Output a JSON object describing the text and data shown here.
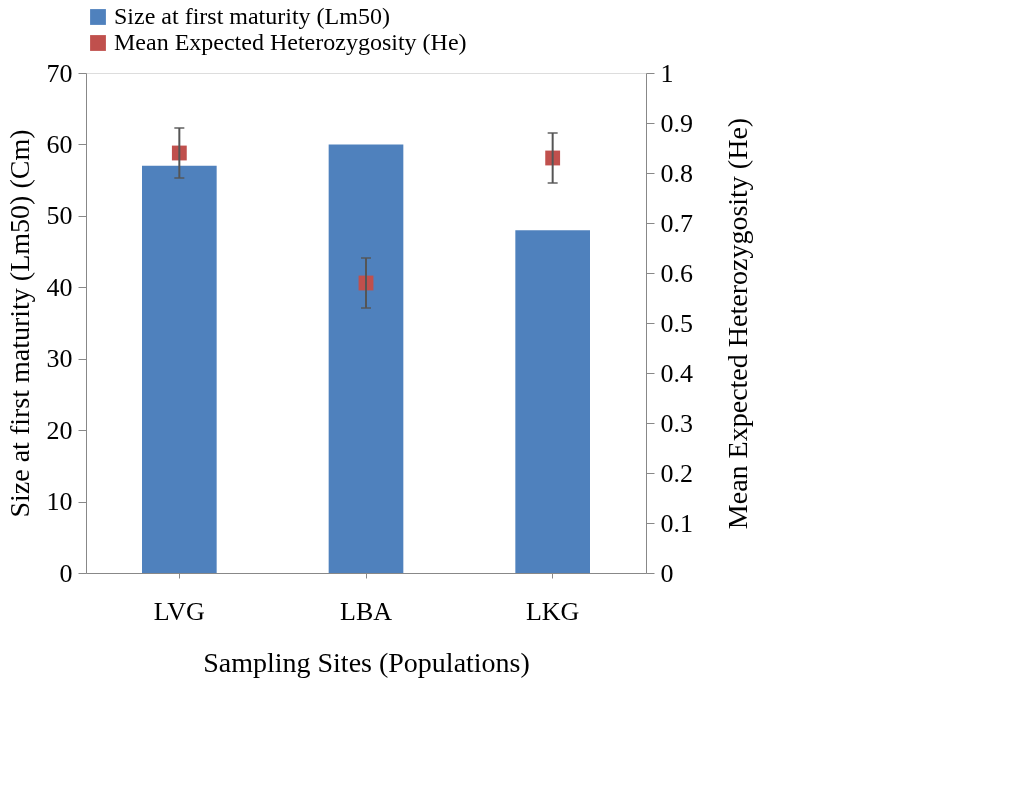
{
  "chart_data": {
    "type": "bar",
    "xlabel": "Sampling Sites (Populations)",
    "ylabel": "Size at first maturity (Lm50) (Cm)",
    "y2label": "Mean Expected Heterozygosity (He)",
    "categories": [
      "LVG",
      "LBA",
      "LKG"
    ],
    "series": [
      {
        "name": "Size at first maturity (Lm50)",
        "color": "#4f81bd",
        "values": [
          57,
          60,
          48
        ]
      },
      {
        "name": "Mean Expected Heterozygosity (He)",
        "type": "scatter",
        "axis": "y2",
        "color": "#c0504d",
        "marker": "square",
        "values": [
          0.84,
          0.58,
          0.83
        ],
        "errors": [
          [
            0.79,
            0.89
          ],
          [
            0.53,
            0.63
          ],
          [
            0.78,
            0.88
          ]
        ]
      }
    ],
    "ylim": [
      0,
      70
    ],
    "yticks": [
      0,
      10,
      20,
      30,
      40,
      50,
      60,
      70
    ],
    "y2lim": [
      0,
      1
    ],
    "y2ticks": [
      0,
      0.1,
      0.2,
      0.3,
      0.4,
      0.5,
      0.6,
      0.7,
      0.8,
      0.9,
      1
    ],
    "grid": false,
    "legend": "top"
  }
}
